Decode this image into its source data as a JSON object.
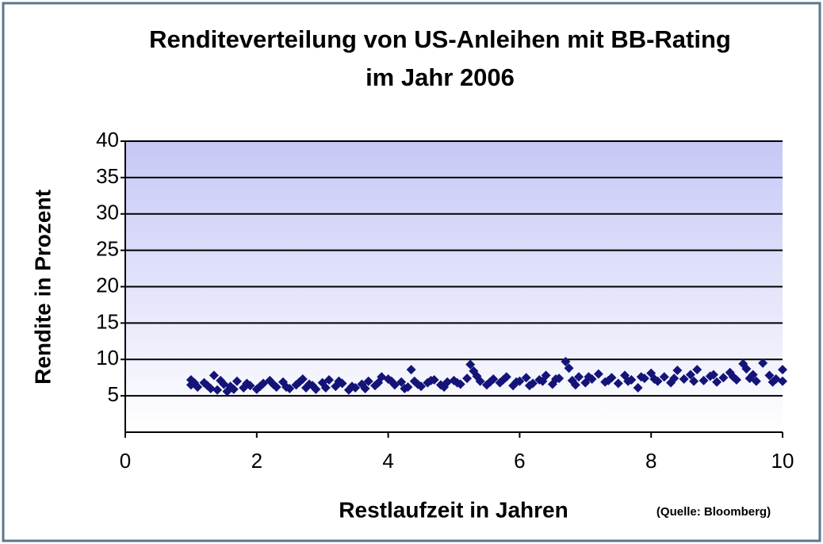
{
  "chart_data": {
    "type": "scatter",
    "title": [
      "Renditeverteilung von US-Anleihen mit BB-Rating",
      "im Jahr 2006"
    ],
    "x_label": "Restlaufzeit in Jahren",
    "y_label": "Rendite in Prozent",
    "source": "(Quelle: Bloomberg)",
    "color": "#141478",
    "xlim": [
      0,
      10
    ],
    "xticks": [
      0,
      2,
      4,
      6,
      8,
      10
    ],
    "ylim": [
      0,
      40
    ],
    "yticks": [
      5,
      10,
      15,
      20,
      25,
      30,
      35,
      40
    ],
    "grid": true,
    "x": [
      1.0,
      1.0,
      1.1,
      1.2,
      1.3,
      1.35,
      1.4,
      1.5,
      1.55,
      1.6,
      1.7,
      1.8,
      1.9,
      2.0,
      2.1,
      2.2,
      2.3,
      2.4,
      2.5,
      2.6,
      2.7,
      2.75,
      2.8,
      2.9,
      3.0,
      3.1,
      3.2,
      3.3,
      3.4,
      3.5,
      3.6,
      3.7,
      3.8,
      3.9,
      4.0,
      4.1,
      4.2,
      4.3,
      4.35,
      4.4,
      4.5,
      4.6,
      4.7,
      4.8,
      4.9,
      5.0,
      5.1,
      5.2,
      5.25,
      5.3,
      5.4,
      5.5,
      5.6,
      5.7,
      5.8,
      5.9,
      6.0,
      6.1,
      6.2,
      6.3,
      6.4,
      6.5,
      6.6,
      6.7,
      6.75,
      6.8,
      6.9,
      7.0,
      7.1,
      7.2,
      7.3,
      7.4,
      7.5,
      7.6,
      7.7,
      7.8,
      7.9,
      8.0,
      8.1,
      8.2,
      8.3,
      8.4,
      8.5,
      8.6,
      8.7,
      8.8,
      8.9,
      9.0,
      9.1,
      9.2,
      9.3,
      9.4,
      9.45,
      9.5,
      9.6,
      9.7,
      9.8,
      9.9,
      10.0,
      10.0,
      1.05,
      1.25,
      1.45,
      1.65,
      1.85,
      2.05,
      2.25,
      2.45,
      2.65,
      2.85,
      3.05,
      3.25,
      3.45,
      3.65,
      3.85,
      4.05,
      4.25,
      4.45,
      4.65,
      4.85,
      5.05,
      5.35,
      5.55,
      5.75,
      5.95,
      6.15,
      6.35,
      6.55,
      6.85,
      7.05,
      7.35,
      7.65,
      7.85,
      8.05,
      8.35,
      8.65,
      8.95,
      9.25,
      9.55,
      9.85
    ],
    "values": [
      7.2,
      6.5,
      6.2,
      6.8,
      6.0,
      7.8,
      5.8,
      6.6,
      5.6,
      6.3,
      7.0,
      6.1,
      6.4,
      5.9,
      6.7,
      7.1,
      6.2,
      6.9,
      6.0,
      6.5,
      7.3,
      6.1,
      6.6,
      5.9,
      6.8,
      7.2,
      6.3,
      6.7,
      5.8,
      6.1,
      6.6,
      7.0,
      6.4,
      7.6,
      7.3,
      6.5,
      6.9,
      6.2,
      8.6,
      7.0,
      6.3,
      6.8,
      7.2,
      6.5,
      6.9,
      7.1,
      6.6,
      7.4,
      9.3,
      8.4,
      7.0,
      6.5,
      7.3,
      6.8,
      7.6,
      6.4,
      7.0,
      7.5,
      6.7,
      7.2,
      7.8,
      6.6,
      7.4,
      9.7,
      8.8,
      7.1,
      7.6,
      6.8,
      7.3,
      8.0,
      6.9,
      7.5,
      6.7,
      7.8,
      7.2,
      6.1,
      7.4,
      8.1,
      7.0,
      7.6,
      6.8,
      8.5,
      7.3,
      7.9,
      8.6,
      7.1,
      7.7,
      6.9,
      7.5,
      8.2,
      7.2,
      9.4,
      8.7,
      7.4,
      7.0,
      9.5,
      7.8,
      7.3,
      8.6,
      7.0,
      6.8,
      6.4,
      7.1,
      5.9,
      6.7,
      6.3,
      6.6,
      6.2,
      6.9,
      6.4,
      6.1,
      7.0,
      6.3,
      6.0,
      6.8,
      7.0,
      6.0,
      6.6,
      7.1,
      6.2,
      6.8,
      7.7,
      6.9,
      7.2,
      6.9,
      6.4,
      7.0,
      7.3,
      6.5,
      7.6,
      7.1,
      7.0,
      7.6,
      7.3,
      7.4,
      7.0,
      7.9,
      7.6,
      7.9,
      6.9
    ]
  }
}
